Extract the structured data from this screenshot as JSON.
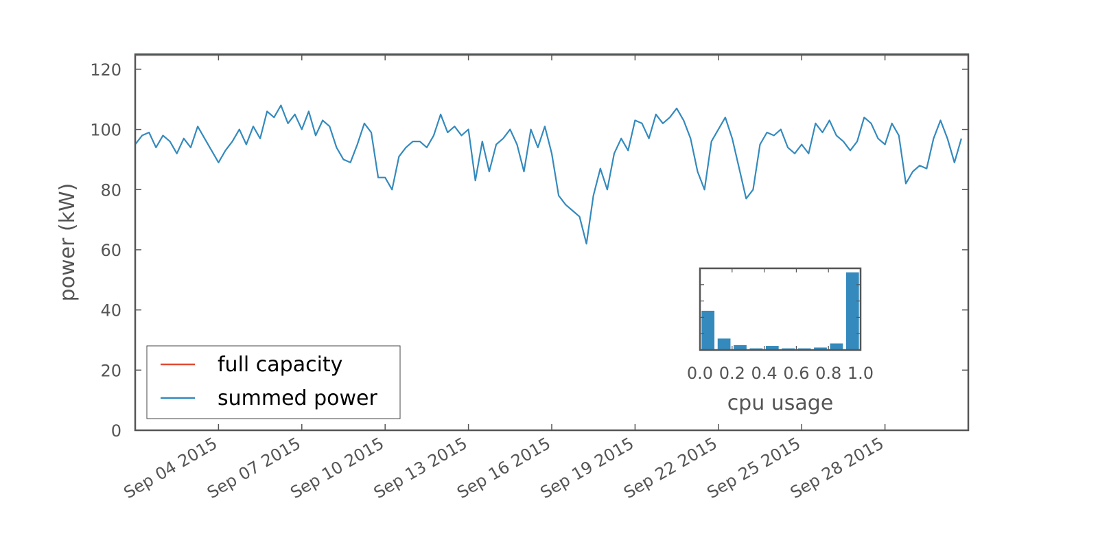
{
  "chart_data": [
    {
      "type": "line",
      "title": "",
      "xlabel": "",
      "ylabel": "power (kW)",
      "ylim": [
        0,
        125
      ],
      "xlim": [
        "2015-09-01",
        "2015-10-01"
      ],
      "yticks": [
        0,
        20,
        40,
        60,
        80,
        100,
        120
      ],
      "xtick_labels": [
        "Sep 04 2015",
        "Sep 07 2015",
        "Sep 10 2015",
        "Sep 13 2015",
        "Sep 16 2015",
        "Sep 19 2015",
        "Sep 22 2015",
        "Sep 25 2015",
        "Sep 28 2015"
      ],
      "xtick_dates": [
        "2015-09-04",
        "2015-09-07",
        "2015-09-10",
        "2015-09-13",
        "2015-09-16",
        "2015-09-19",
        "2015-09-22",
        "2015-09-25",
        "2015-09-28"
      ],
      "grid": false,
      "legend": {
        "placement": "lower-left",
        "entries": [
          "full capacity",
          "summed power"
        ]
      },
      "series": [
        {
          "name": "full capacity",
          "color": "#e24a33",
          "points": [
            [
              "2015-09-01",
              124.8
            ],
            [
              "2015-10-01",
              124.8
            ]
          ]
        },
        {
          "name": "summed power",
          "color": "#348abd",
          "points": [
            [
              "2015-09-01 00:00",
              95
            ],
            [
              "2015-09-01 06:00",
              98
            ],
            [
              "2015-09-01 12:00",
              99
            ],
            [
              "2015-09-01 18:00",
              94
            ],
            [
              "2015-09-02 00:00",
              98
            ],
            [
              "2015-09-02 06:00",
              96
            ],
            [
              "2015-09-02 12:00",
              92
            ],
            [
              "2015-09-02 18:00",
              97
            ],
            [
              "2015-09-03 00:00",
              94
            ],
            [
              "2015-09-03 06:00",
              101
            ],
            [
              "2015-09-03 12:00",
              97
            ],
            [
              "2015-09-03 18:00",
              93
            ],
            [
              "2015-09-04 00:00",
              89
            ],
            [
              "2015-09-04 06:00",
              93
            ],
            [
              "2015-09-04 12:00",
              96
            ],
            [
              "2015-09-04 18:00",
              100
            ],
            [
              "2015-09-05 00:00",
              95
            ],
            [
              "2015-09-05 06:00",
              101
            ],
            [
              "2015-09-05 12:00",
              97
            ],
            [
              "2015-09-05 18:00",
              106
            ],
            [
              "2015-09-06 00:00",
              104
            ],
            [
              "2015-09-06 06:00",
              108
            ],
            [
              "2015-09-06 12:00",
              102
            ],
            [
              "2015-09-06 18:00",
              105
            ],
            [
              "2015-09-07 00:00",
              100
            ],
            [
              "2015-09-07 06:00",
              106
            ],
            [
              "2015-09-07 12:00",
              98
            ],
            [
              "2015-09-07 18:00",
              103
            ],
            [
              "2015-09-08 00:00",
              101
            ],
            [
              "2015-09-08 06:00",
              94
            ],
            [
              "2015-09-08 12:00",
              90
            ],
            [
              "2015-09-08 18:00",
              89
            ],
            [
              "2015-09-09 00:00",
              95
            ],
            [
              "2015-09-09 06:00",
              102
            ],
            [
              "2015-09-09 12:00",
              99
            ],
            [
              "2015-09-09 18:00",
              84
            ],
            [
              "2015-09-10 00:00",
              84
            ],
            [
              "2015-09-10 06:00",
              80
            ],
            [
              "2015-09-10 12:00",
              91
            ],
            [
              "2015-09-10 18:00",
              94
            ],
            [
              "2015-09-11 00:00",
              96
            ],
            [
              "2015-09-11 06:00",
              96
            ],
            [
              "2015-09-11 12:00",
              94
            ],
            [
              "2015-09-11 18:00",
              98
            ],
            [
              "2015-09-12 00:00",
              105
            ],
            [
              "2015-09-12 06:00",
              99
            ],
            [
              "2015-09-12 12:00",
              101
            ],
            [
              "2015-09-12 18:00",
              98
            ],
            [
              "2015-09-13 00:00",
              100
            ],
            [
              "2015-09-13 06:00",
              83
            ],
            [
              "2015-09-13 12:00",
              96
            ],
            [
              "2015-09-13 18:00",
              86
            ],
            [
              "2015-09-14 00:00",
              95
            ],
            [
              "2015-09-14 06:00",
              97
            ],
            [
              "2015-09-14 12:00",
              100
            ],
            [
              "2015-09-14 18:00",
              95
            ],
            [
              "2015-09-15 00:00",
              86
            ],
            [
              "2015-09-15 06:00",
              100
            ],
            [
              "2015-09-15 12:00",
              94
            ],
            [
              "2015-09-15 18:00",
              101
            ],
            [
              "2015-09-16 00:00",
              92
            ],
            [
              "2015-09-16 06:00",
              78
            ],
            [
              "2015-09-16 12:00",
              75
            ],
            [
              "2015-09-16 18:00",
              73
            ],
            [
              "2015-09-17 00:00",
              71
            ],
            [
              "2015-09-17 06:00",
              62
            ],
            [
              "2015-09-17 12:00",
              78
            ],
            [
              "2015-09-17 18:00",
              87
            ],
            [
              "2015-09-18 00:00",
              80
            ],
            [
              "2015-09-18 06:00",
              92
            ],
            [
              "2015-09-18 12:00",
              97
            ],
            [
              "2015-09-18 18:00",
              93
            ],
            [
              "2015-09-19 00:00",
              103
            ],
            [
              "2015-09-19 06:00",
              102
            ],
            [
              "2015-09-19 12:00",
              97
            ],
            [
              "2015-09-19 18:00",
              105
            ],
            [
              "2015-09-20 00:00",
              102
            ],
            [
              "2015-09-20 06:00",
              104
            ],
            [
              "2015-09-20 12:00",
              107
            ],
            [
              "2015-09-20 18:00",
              103
            ],
            [
              "2015-09-21 00:00",
              97
            ],
            [
              "2015-09-21 06:00",
              86
            ],
            [
              "2015-09-21 12:00",
              80
            ],
            [
              "2015-09-21 18:00",
              96
            ],
            [
              "2015-09-22 00:00",
              100
            ],
            [
              "2015-09-22 06:00",
              104
            ],
            [
              "2015-09-22 12:00",
              97
            ],
            [
              "2015-09-22 18:00",
              87
            ],
            [
              "2015-09-23 00:00",
              77
            ],
            [
              "2015-09-23 06:00",
              80
            ],
            [
              "2015-09-23 12:00",
              95
            ],
            [
              "2015-09-23 18:00",
              99
            ],
            [
              "2015-09-24 00:00",
              98
            ],
            [
              "2015-09-24 06:00",
              100
            ],
            [
              "2015-09-24 12:00",
              94
            ],
            [
              "2015-09-24 18:00",
              92
            ],
            [
              "2015-09-25 00:00",
              95
            ],
            [
              "2015-09-25 06:00",
              92
            ],
            [
              "2015-09-25 12:00",
              102
            ],
            [
              "2015-09-25 18:00",
              99
            ],
            [
              "2015-09-26 00:00",
              103
            ],
            [
              "2015-09-26 06:00",
              98
            ],
            [
              "2015-09-26 12:00",
              96
            ],
            [
              "2015-09-26 18:00",
              93
            ],
            [
              "2015-09-27 00:00",
              96
            ],
            [
              "2015-09-27 06:00",
              104
            ],
            [
              "2015-09-27 12:00",
              102
            ],
            [
              "2015-09-27 18:00",
              97
            ],
            [
              "2015-09-28 00:00",
              95
            ],
            [
              "2015-09-28 06:00",
              102
            ],
            [
              "2015-09-28 12:00",
              98
            ],
            [
              "2015-09-28 18:00",
              82
            ],
            [
              "2015-09-29 00:00",
              86
            ],
            [
              "2015-09-29 06:00",
              88
            ],
            [
              "2015-09-29 12:00",
              87
            ],
            [
              "2015-09-29 18:00",
              97
            ],
            [
              "2015-09-30 00:00",
              103
            ],
            [
              "2015-09-30 06:00",
              97
            ],
            [
              "2015-09-30 12:00",
              89
            ],
            [
              "2015-09-30 18:00",
              97
            ]
          ]
        }
      ]
    },
    {
      "type": "bar",
      "title": "",
      "xlabel": "cpu usage",
      "ylabel": "",
      "xlim": [
        0,
        1
      ],
      "xtick_labels": [
        "0.0",
        "0.2",
        "0.4",
        "0.6",
        "0.8",
        "1.0"
      ],
      "grid": false,
      "bin_width": 0.1,
      "bin_centers": [
        0.05,
        0.15,
        0.25,
        0.35,
        0.45,
        0.55,
        0.65,
        0.75,
        0.85,
        0.95
      ],
      "values": [
        0.48,
        0.14,
        0.06,
        0.02,
        0.05,
        0.02,
        0.02,
        0.03,
        0.08,
        0.95
      ],
      "color": "#348abd"
    }
  ]
}
